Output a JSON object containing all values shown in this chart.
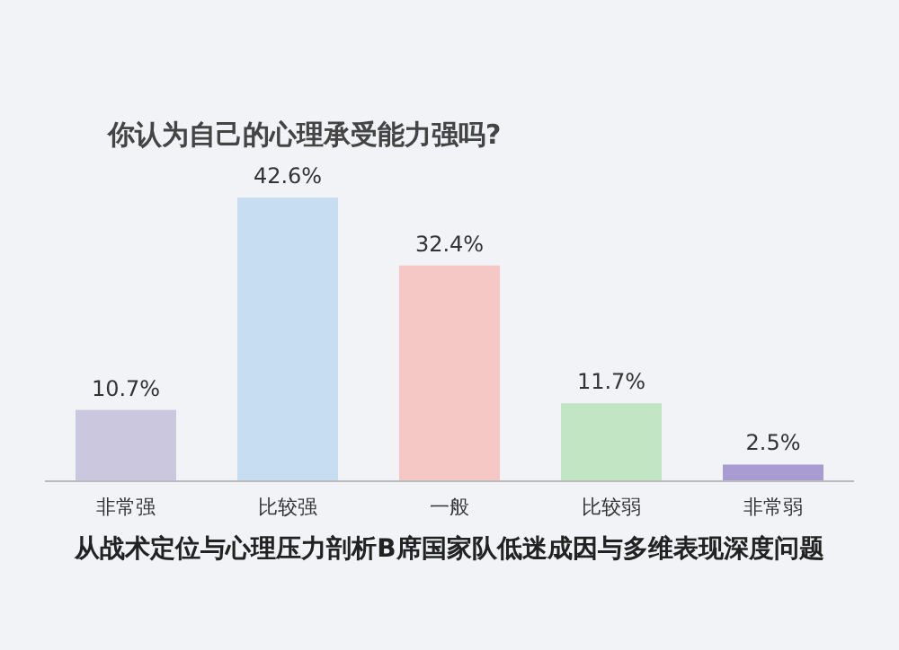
{
  "chart_data": {
    "type": "bar",
    "title": "你认为自己的心理承受能力强吗?",
    "categories": [
      "非常强",
      "比较强",
      "一般",
      "比较弱",
      "非常弱"
    ],
    "values": [
      10.7,
      42.6,
      32.4,
      11.7,
      2.5
    ],
    "colors": [
      "#cbc7de",
      "#c7ddf1",
      "#f5c8c6",
      "#c2e5c4",
      "#a99cd2"
    ],
    "value_labels": [
      "10.7%",
      "42.6%",
      "32.4%",
      "11.7%",
      "2.5%"
    ],
    "annotations": [
      "从战术定位与心理压力剖析B席国家队低迷成因与多维表现深度问题"
    ]
  }
}
